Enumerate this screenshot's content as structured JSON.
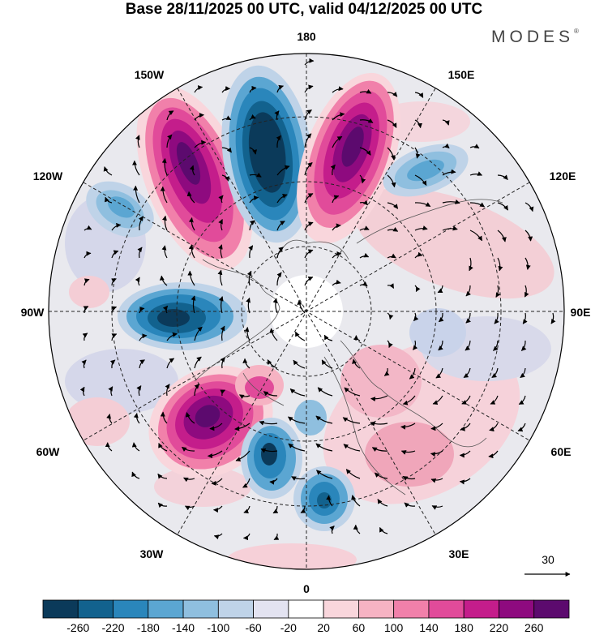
{
  "title": "Base 28/11/2025 00 UTC, valid 04/12/2025 00 UTC",
  "brand": "MODES",
  "brand_mark": "®",
  "longitude_labels": {
    "top": "180",
    "bottom": "0",
    "left": "90W",
    "right": "90E",
    "upper_left": "150W",
    "upper_right": "150E",
    "mid_upper_left": "120W",
    "mid_upper_right": "120E",
    "mid_lower_left": "60W",
    "mid_lower_right": "60E",
    "lower_left": "30W",
    "lower_right": "30E"
  },
  "vector_reference": {
    "value": "30"
  },
  "colorbar": {
    "ticks": [
      "-260",
      "-220",
      "-180",
      "-140",
      "-100",
      "-60",
      "-20",
      "20",
      "60",
      "100",
      "140",
      "180",
      "220",
      "260"
    ],
    "colors": [
      "#0b3a5a",
      "#12628e",
      "#2a86bb",
      "#5ba6d2",
      "#8fbfdf",
      "#bfd3e8",
      "#e3e3f1",
      "#ffffff",
      "#f9d6dc",
      "#f6b3c3",
      "#f180aa",
      "#e14b9a",
      "#c41d8b",
      "#8e0a7f",
      "#5c0a6e"
    ]
  },
  "colors": {
    "neg_strong": "#0b3a5a",
    "neg_mid": "#2a86bb",
    "neg_weak": "#bfd3e8",
    "pos_strong": "#5c0a6e",
    "pos_mid": "#e14b9a",
    "pos_weak": "#f9d6dc",
    "background": "#e9e9ee"
  }
}
